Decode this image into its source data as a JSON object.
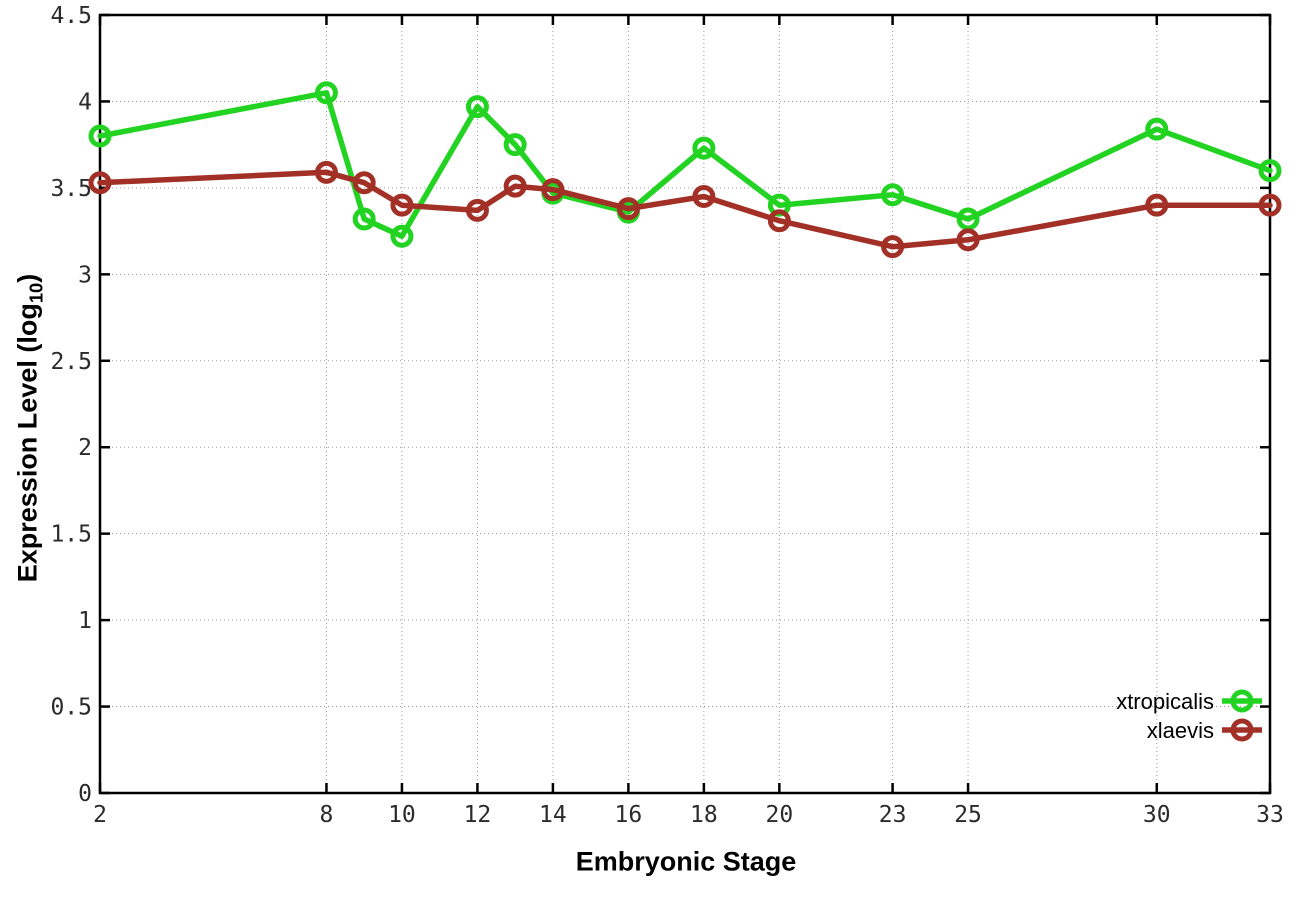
{
  "figure": {
    "background": "#ffffff",
    "xlabel": "Embryonic Stage",
    "ylabel_main": "Expression Level (log",
    "ylabel_sub": "10",
    "ylabel_close": ")"
  },
  "chart_data": {
    "type": "line",
    "title": "",
    "xlabel": "Embryonic Stage",
    "ylabel": "Expression Level (log10)",
    "x": [
      2,
      8,
      9,
      10,
      12,
      13,
      14,
      16,
      18,
      20,
      23,
      25,
      30,
      33
    ],
    "x_ticks": [
      2,
      8,
      10,
      12,
      14,
      16,
      18,
      20,
      23,
      25,
      30,
      33
    ],
    "y_ticks": [
      0,
      0.5,
      1,
      1.5,
      2,
      2.5,
      3,
      3.5,
      4,
      4.5
    ],
    "xlim": [
      2,
      33
    ],
    "ylim": [
      0,
      4.5
    ],
    "grid": true,
    "legend_position": "bottom-right-inside",
    "marker": "open-circle",
    "series": [
      {
        "name": "xtropicalis",
        "color": "#22d322",
        "values": [
          3.8,
          4.05,
          3.32,
          3.22,
          3.97,
          3.75,
          3.47,
          3.36,
          3.73,
          3.4,
          3.46,
          3.32,
          3.84,
          3.6
        ]
      },
      {
        "name": "xlaevis",
        "color": "#a23026",
        "values": [
          3.53,
          3.59,
          3.53,
          3.4,
          3.37,
          3.51,
          3.49,
          3.38,
          3.45,
          3.31,
          3.16,
          3.2,
          3.4,
          3.4
        ]
      }
    ],
    "style_colors": {
      "border": "#000000",
      "grid": "#9c9c9c",
      "tick_text": "#2b2b2b",
      "legend_text": "#000000"
    }
  }
}
